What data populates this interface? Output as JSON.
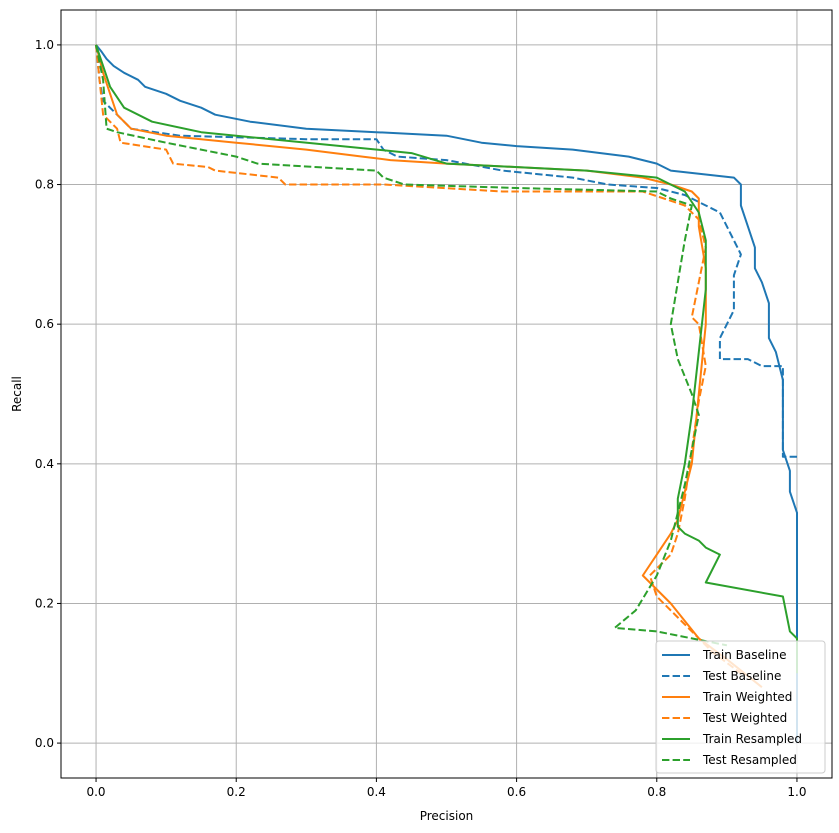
{
  "chart_data": {
    "type": "line",
    "title": "",
    "xlabel": "Precision",
    "ylabel": "Recall",
    "xlim": [
      -0.05,
      1.05
    ],
    "ylim": [
      -0.05,
      1.05
    ],
    "xticks": [
      "0.0",
      "0.2",
      "0.4",
      "0.6",
      "0.8",
      "1.0"
    ],
    "yticks": [
      "0.0",
      "0.2",
      "0.4",
      "0.6",
      "0.8",
      "1.0"
    ],
    "grid": true,
    "legend_position": "lower-right",
    "series": [
      {
        "name": "Train Baseline",
        "color": "#1f77b4",
        "style": "solid",
        "points": [
          [
            1.0,
            0.0
          ],
          [
            1.0,
            0.33
          ],
          [
            0.99,
            0.36
          ],
          [
            0.99,
            0.39
          ],
          [
            0.98,
            0.42
          ],
          [
            0.98,
            0.52
          ],
          [
            0.97,
            0.56
          ],
          [
            0.96,
            0.58
          ],
          [
            0.96,
            0.63
          ],
          [
            0.95,
            0.66
          ],
          [
            0.94,
            0.68
          ],
          [
            0.94,
            0.71
          ],
          [
            0.93,
            0.74
          ],
          [
            0.92,
            0.77
          ],
          [
            0.92,
            0.8
          ],
          [
            0.91,
            0.81
          ],
          [
            0.82,
            0.82
          ],
          [
            0.8,
            0.83
          ],
          [
            0.76,
            0.84
          ],
          [
            0.68,
            0.85
          ],
          [
            0.6,
            0.855
          ],
          [
            0.55,
            0.86
          ],
          [
            0.5,
            0.87
          ],
          [
            0.4,
            0.875
          ],
          [
            0.3,
            0.88
          ],
          [
            0.22,
            0.89
          ],
          [
            0.17,
            0.9
          ],
          [
            0.15,
            0.91
          ],
          [
            0.12,
            0.92
          ],
          [
            0.1,
            0.93
          ],
          [
            0.07,
            0.94
          ],
          [
            0.06,
            0.95
          ],
          [
            0.04,
            0.96
          ],
          [
            0.025,
            0.97
          ],
          [
            0.015,
            0.98
          ],
          [
            0.008,
            0.99
          ],
          [
            0.0,
            1.0
          ]
        ]
      },
      {
        "name": "Test Baseline",
        "color": "#1f77b4",
        "style": "dashed",
        "points": [
          [
            1.0,
            0.41
          ],
          [
            0.98,
            0.41
          ],
          [
            0.98,
            0.54
          ],
          [
            0.95,
            0.54
          ],
          [
            0.93,
            0.55
          ],
          [
            0.89,
            0.55
          ],
          [
            0.89,
            0.58
          ],
          [
            0.91,
            0.62
          ],
          [
            0.91,
            0.67
          ],
          [
            0.92,
            0.7
          ],
          [
            0.9,
            0.74
          ],
          [
            0.89,
            0.76
          ],
          [
            0.87,
            0.77
          ],
          [
            0.84,
            0.785
          ],
          [
            0.8,
            0.795
          ],
          [
            0.73,
            0.8
          ],
          [
            0.68,
            0.81
          ],
          [
            0.58,
            0.82
          ],
          [
            0.5,
            0.835
          ],
          [
            0.43,
            0.84
          ],
          [
            0.41,
            0.85
          ],
          [
            0.4,
            0.865
          ],
          [
            0.3,
            0.865
          ],
          [
            0.12,
            0.87
          ],
          [
            0.05,
            0.88
          ],
          [
            0.03,
            0.9
          ],
          [
            0.01,
            0.92
          ],
          [
            0.005,
            0.95
          ],
          [
            0.0,
            1.0
          ]
        ]
      },
      {
        "name": "Train Weighted",
        "color": "#ff7f0e",
        "style": "solid",
        "points": [
          [
            0.0,
            1.0
          ],
          [
            0.01,
            0.96
          ],
          [
            0.02,
            0.93
          ],
          [
            0.03,
            0.9
          ],
          [
            0.05,
            0.88
          ],
          [
            0.1,
            0.87
          ],
          [
            0.2,
            0.86
          ],
          [
            0.3,
            0.85
          ],
          [
            0.38,
            0.84
          ],
          [
            0.42,
            0.835
          ],
          [
            0.5,
            0.83
          ],
          [
            0.6,
            0.825
          ],
          [
            0.7,
            0.82
          ],
          [
            0.78,
            0.81
          ],
          [
            0.82,
            0.8
          ],
          [
            0.85,
            0.79
          ],
          [
            0.86,
            0.78
          ],
          [
            0.86,
            0.74
          ],
          [
            0.87,
            0.68
          ],
          [
            0.87,
            0.6
          ],
          [
            0.86,
            0.5
          ],
          [
            0.85,
            0.4
          ],
          [
            0.83,
            0.32
          ],
          [
            0.82,
            0.3
          ],
          [
            0.8,
            0.27
          ],
          [
            0.78,
            0.24
          ],
          [
            0.82,
            0.2
          ],
          [
            0.86,
            0.15
          ],
          [
            0.9,
            0.12
          ],
          [
            0.95,
            0.08
          ]
        ]
      },
      {
        "name": "Test Weighted",
        "color": "#ff7f0e",
        "style": "dashed",
        "points": [
          [
            0.0,
            1.0
          ],
          [
            0.01,
            0.9
          ],
          [
            0.03,
            0.88
          ],
          [
            0.035,
            0.86
          ],
          [
            0.1,
            0.85
          ],
          [
            0.11,
            0.83
          ],
          [
            0.16,
            0.825
          ],
          [
            0.17,
            0.82
          ],
          [
            0.26,
            0.81
          ],
          [
            0.27,
            0.8
          ],
          [
            0.41,
            0.8
          ],
          [
            0.58,
            0.79
          ],
          [
            0.78,
            0.79
          ],
          [
            0.84,
            0.77
          ],
          [
            0.86,
            0.75
          ],
          [
            0.87,
            0.71
          ],
          [
            0.85,
            0.61
          ],
          [
            0.86,
            0.6
          ],
          [
            0.87,
            0.54
          ],
          [
            0.86,
            0.49
          ],
          [
            0.84,
            0.35
          ],
          [
            0.83,
            0.3
          ],
          [
            0.82,
            0.27
          ],
          [
            0.79,
            0.24
          ],
          [
            0.8,
            0.21
          ],
          [
            0.84,
            0.17
          ],
          [
            0.88,
            0.13
          ],
          [
            0.92,
            0.1
          ]
        ]
      },
      {
        "name": "Train Resampled",
        "color": "#2ca02c",
        "style": "solid",
        "points": [
          [
            0.0,
            1.0
          ],
          [
            0.01,
            0.97
          ],
          [
            0.02,
            0.94
          ],
          [
            0.04,
            0.91
          ],
          [
            0.08,
            0.89
          ],
          [
            0.15,
            0.875
          ],
          [
            0.25,
            0.865
          ],
          [
            0.35,
            0.855
          ],
          [
            0.45,
            0.845
          ],
          [
            0.5,
            0.83
          ],
          [
            0.7,
            0.82
          ],
          [
            0.8,
            0.81
          ],
          [
            0.84,
            0.79
          ],
          [
            0.86,
            0.76
          ],
          [
            0.87,
            0.72
          ],
          [
            0.87,
            0.65
          ],
          [
            0.86,
            0.56
          ],
          [
            0.85,
            0.47
          ],
          [
            0.84,
            0.4
          ],
          [
            0.83,
            0.35
          ],
          [
            0.83,
            0.31
          ],
          [
            0.84,
            0.3
          ],
          [
            0.86,
            0.29
          ],
          [
            0.87,
            0.28
          ],
          [
            0.89,
            0.27
          ],
          [
            0.87,
            0.23
          ],
          [
            0.98,
            0.21
          ],
          [
            0.99,
            0.16
          ],
          [
            1.0,
            0.15
          ],
          [
            1.0,
            0.1
          ]
        ]
      },
      {
        "name": "Test Resampled",
        "color": "#2ca02c",
        "style": "dashed",
        "points": [
          [
            0.0,
            1.0
          ],
          [
            0.01,
            0.95
          ],
          [
            0.015,
            0.88
          ],
          [
            0.03,
            0.875
          ],
          [
            0.1,
            0.86
          ],
          [
            0.2,
            0.84
          ],
          [
            0.23,
            0.83
          ],
          [
            0.4,
            0.82
          ],
          [
            0.41,
            0.81
          ],
          [
            0.44,
            0.8
          ],
          [
            0.6,
            0.795
          ],
          [
            0.8,
            0.79
          ],
          [
            0.82,
            0.78
          ],
          [
            0.85,
            0.77
          ],
          [
            0.84,
            0.72
          ],
          [
            0.83,
            0.66
          ],
          [
            0.82,
            0.6
          ],
          [
            0.83,
            0.55
          ],
          [
            0.85,
            0.5
          ],
          [
            0.86,
            0.47
          ],
          [
            0.85,
            0.42
          ],
          [
            0.84,
            0.37
          ],
          [
            0.83,
            0.33
          ],
          [
            0.82,
            0.29
          ],
          [
            0.8,
            0.24
          ],
          [
            0.77,
            0.19
          ],
          [
            0.74,
            0.165
          ],
          [
            0.8,
            0.16
          ],
          [
            0.85,
            0.15
          ],
          [
            0.9,
            0.14
          ]
        ]
      }
    ]
  }
}
